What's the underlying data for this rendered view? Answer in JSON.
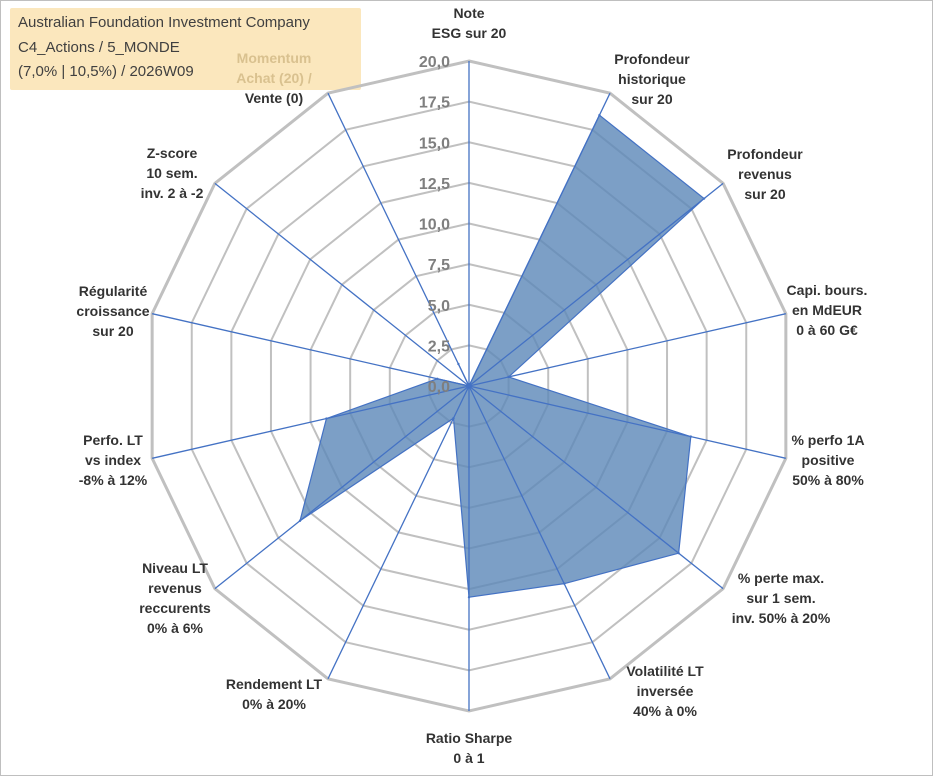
{
  "header": {
    "company": "Australian Foundation Investment Company",
    "category": "C4_Actions / 5_MONDE",
    "params": "(7,0% | 10,5%) / 2026W09"
  },
  "colors": {
    "fill": "#5b87b8",
    "stroke": "#4472c4",
    "grid": "#c0c0c0",
    "spoke": "#4472c4",
    "header_bg": "#fbe7bd",
    "momentum_text": "#d9c18f"
  },
  "chart_data": {
    "type": "radar",
    "title": "",
    "r_range": [
      0,
      20
    ],
    "ticks": [
      "0,0",
      "2,5",
      "5,0",
      "7,5",
      "10,0",
      "12,5",
      "15,0",
      "17,5",
      "20,0"
    ],
    "grid": true,
    "axes": [
      {
        "label": [
          "Note",
          "ESG sur 20"
        ],
        "value": 0
      },
      {
        "label": [
          "Profondeur",
          "historique",
          "sur 20"
        ],
        "value": 18.5
      },
      {
        "label": [
          "Profondeur",
          "revenus",
          "sur 20"
        ],
        "value": 18.5
      },
      {
        "label": [
          "Capi. bours.",
          "en MdEUR",
          "0 à 60 G€"
        ],
        "value": 2.5
      },
      {
        "label": [
          "% perfo 1A",
          "positive",
          "50% à 80%"
        ],
        "value": 14.0
      },
      {
        "label": [
          "% perte max.",
          "sur 1 sem.",
          "inv. 50% à 20%"
        ],
        "value": 16.5
      },
      {
        "label": [
          "Volatilité LT",
          "inversée",
          "40% à 0%"
        ],
        "value": 13.5
      },
      {
        "label": [
          "Ratio Sharpe",
          "0 à 1"
        ],
        "value": 13.0
      },
      {
        "label": [
          "Rendement LT",
          "0% à 20%"
        ],
        "value": 2.2
      },
      {
        "label": [
          "Niveau LT",
          "revenus",
          "reccurents",
          "0% à 6%"
        ],
        "value": 13.3
      },
      {
        "label": [
          "Perfo. LT",
          "vs index",
          "-8% à 12%"
        ],
        "value": 9.0
      },
      {
        "label": [
          "Régularité",
          "croissance",
          "sur 20"
        ],
        "value": 2.0
      },
      {
        "label": [
          "Z-score",
          "10 sem.",
          "inv. 2 à -2"
        ],
        "value": 0
      },
      {
        "label": [
          "Momentum",
          "Achat (20) /",
          "Vente (0)"
        ],
        "value": 1.5
      }
    ]
  }
}
